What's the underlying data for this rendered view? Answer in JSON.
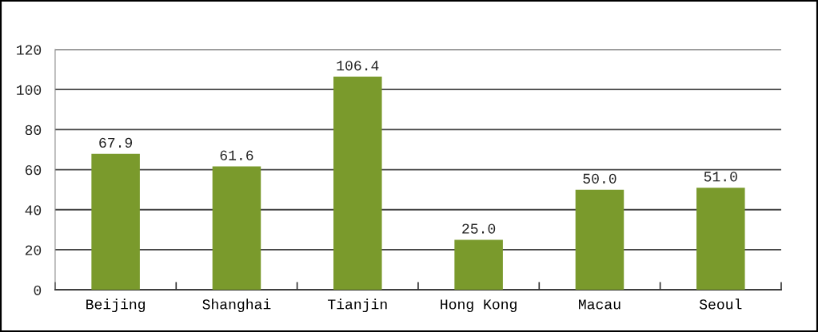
{
  "chart_data": {
    "type": "bar",
    "categories": [
      "Beijing",
      "Shanghai",
      "Tianjin",
      "Hong Kong",
      "Macau",
      "Seoul"
    ],
    "values": [
      67.9,
      61.6,
      106.4,
      25.0,
      50.0,
      51.0
    ],
    "value_labels": [
      "67.9",
      "61.6",
      "106.4",
      "25.0",
      "50.0",
      "51.0"
    ],
    "color": "#7a9a2c",
    "ylim": [
      0,
      120
    ],
    "yticks": [
      0,
      20,
      40,
      60,
      80,
      100,
      120
    ],
    "grid": "y",
    "legend": false
  }
}
